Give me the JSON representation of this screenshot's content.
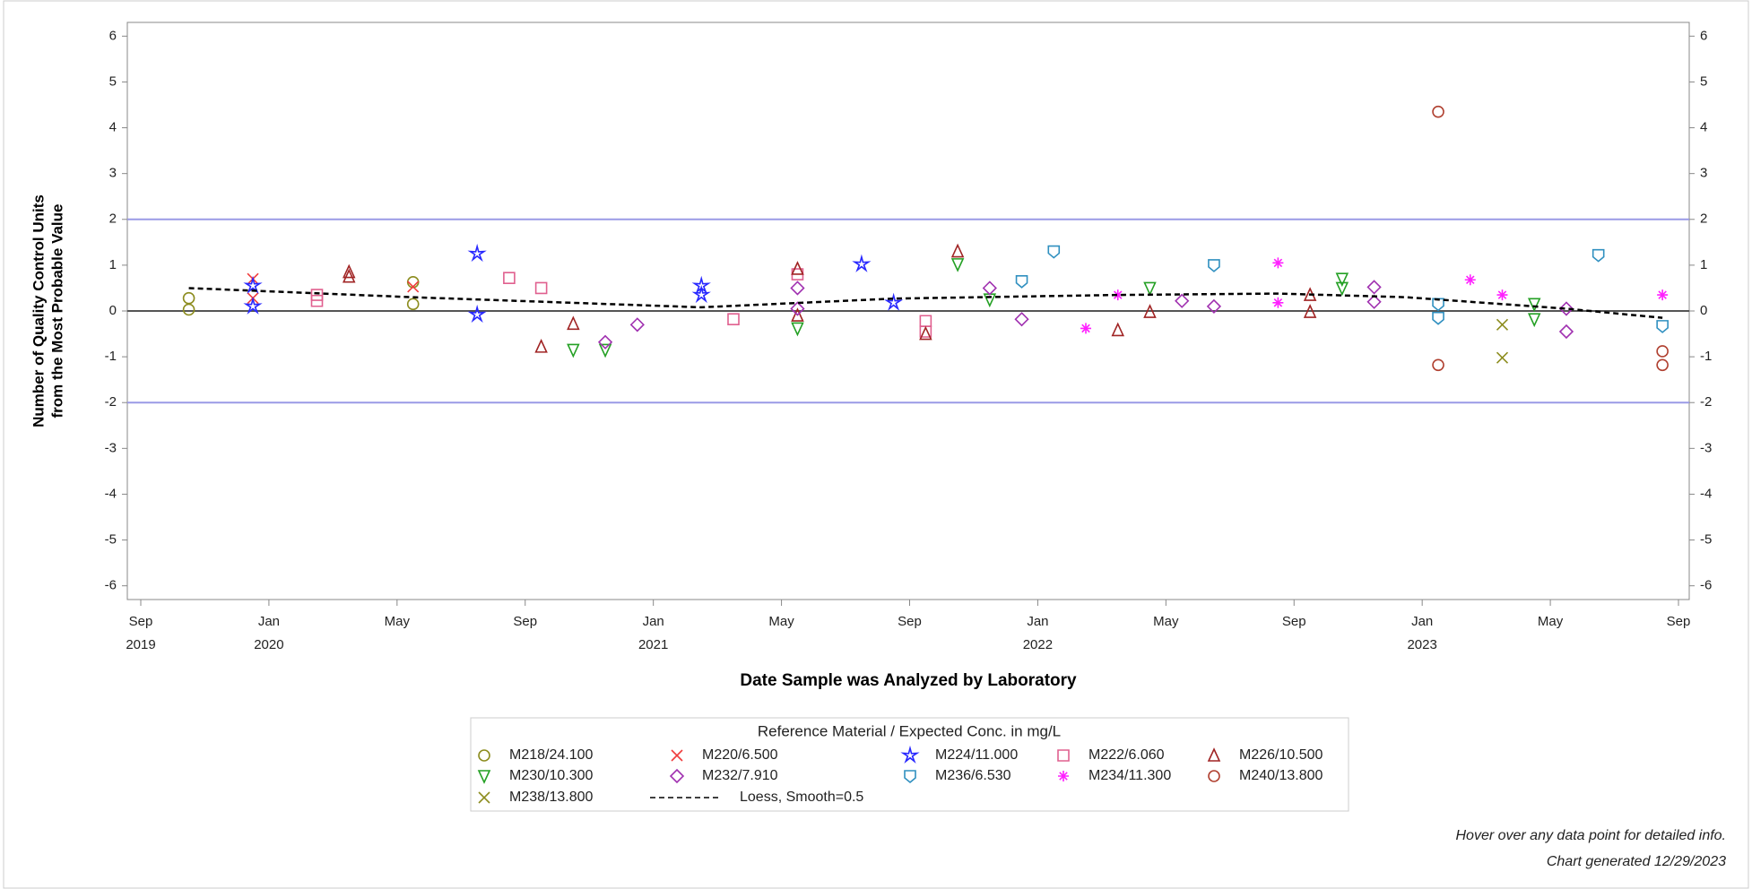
{
  "chart_data": {
    "type": "scatter",
    "x_label": "Date Sample was Analyzed by Laboratory",
    "y_label": [
      "Number of Quality Control Units",
      "from the Most Probable Value"
    ],
    "xlim": [
      "2019-09",
      "2023-09"
    ],
    "xticks": [
      {
        "value": "2019-09",
        "label": [
          "Sep",
          "2019"
        ]
      },
      {
        "value": "2020-01",
        "label": [
          "Jan",
          "2020"
        ]
      },
      {
        "value": "2020-05",
        "label": "May"
      },
      {
        "value": "2020-09",
        "label": "Sep"
      },
      {
        "value": "2021-01",
        "label": [
          "Jan",
          "2021"
        ]
      },
      {
        "value": "2021-05",
        "label": "May"
      },
      {
        "value": "2021-09",
        "label": "Sep"
      },
      {
        "value": "2022-01",
        "label": [
          "Jan",
          "2022"
        ]
      },
      {
        "value": "2022-05",
        "label": "May"
      },
      {
        "value": "2022-09",
        "label": "Sep"
      },
      {
        "value": "2023-01",
        "label": [
          "Jan",
          "2023"
        ]
      },
      {
        "value": "2023-05",
        "label": "May"
      },
      {
        "value": "2023-09",
        "label": "Sep"
      }
    ],
    "ylim": [
      -6.3,
      6.3
    ],
    "yticks": [
      6,
      5,
      4,
      3,
      2,
      1,
      0,
      -1,
      -2,
      -3,
      -4,
      -5,
      -6
    ],
    "y2lim": [
      -6.3,
      6.3
    ],
    "y2ticks": [
      6,
      5,
      4,
      3,
      2,
      1,
      0,
      -1,
      -2,
      -3,
      -4,
      -5,
      -6
    ],
    "ref_lines": [
      {
        "value": 2,
        "color": "#9a9ae6"
      },
      {
        "value": 0,
        "color": "#555555"
      },
      {
        "value": -2,
        "color": "#9a9ae6"
      }
    ],
    "legend_title": "Reference Material / Expected Conc. in mg/L",
    "legend_position": "bottom",
    "series": [
      {
        "name": "M218/24.100",
        "color": "#8c8c1e",
        "marker": "circle",
        "x": [
          "2019-10",
          "2019-10",
          "2020-05",
          "2020-05"
        ],
        "values": [
          0.28,
          0.03,
          0.63,
          0.15
        ]
      },
      {
        "name": "M220/6.500",
        "color": "#f03c3c",
        "marker": "x",
        "x": [
          "2019-12",
          "2019-12",
          "2020-05"
        ],
        "values": [
          0.7,
          0.28,
          0.53
        ]
      },
      {
        "name": "M224/11.000",
        "color": "#2828ff",
        "marker": "star",
        "x": [
          "2019-12",
          "2019-12",
          "2020-07",
          "2020-07",
          "2021-02",
          "2021-02",
          "2021-07",
          "2021-08"
        ],
        "values": [
          0.1,
          0.55,
          -0.08,
          1.25,
          0.55,
          0.35,
          1.02,
          0.18
        ]
      },
      {
        "name": "M222/6.060",
        "color": "#e0608f",
        "marker": "square",
        "x": [
          "2020-02",
          "2020-02",
          "2020-08",
          "2020-09",
          "2021-03",
          "2021-05",
          "2021-09",
          "2021-09"
        ],
        "values": [
          0.35,
          0.22,
          0.72,
          0.5,
          -0.18,
          0.8,
          -0.22,
          -0.45
        ]
      },
      {
        "name": "M226/10.500",
        "color": "#a02424",
        "marker": "triangle",
        "x": [
          "2020-03",
          "2020-03",
          "2020-09",
          "2020-10",
          "2021-05",
          "2021-05",
          "2021-09",
          "2021-10",
          "2022-03",
          "2022-04",
          "2022-09",
          "2022-09"
        ],
        "values": [
          0.85,
          0.75,
          -0.78,
          -0.28,
          0.92,
          -0.1,
          -0.5,
          1.3,
          -0.42,
          -0.02,
          0.35,
          -0.02
        ]
      },
      {
        "name": "M230/10.300",
        "color": "#24a024",
        "marker": "down-triangle",
        "x": [
          "2020-10",
          "2020-11",
          "2021-05",
          "2021-10",
          "2021-11",
          "2022-04",
          "2022-10",
          "2022-10",
          "2023-04",
          "2023-04"
        ],
        "values": [
          -0.85,
          -0.85,
          -0.38,
          1.02,
          0.25,
          0.5,
          0.7,
          0.5,
          0.15,
          -0.18
        ]
      },
      {
        "name": "M232/7.910",
        "color": "#a030b0",
        "marker": "diamond",
        "x": [
          "2020-11",
          "2020-12",
          "2021-05",
          "2021-05",
          "2021-11",
          "2021-12",
          "2022-05",
          "2022-06",
          "2022-11",
          "2022-11",
          "2023-05",
          "2023-05"
        ],
        "values": [
          -0.68,
          -0.3,
          0.5,
          0.05,
          0.5,
          -0.18,
          0.22,
          0.1,
          0.52,
          0.2,
          -0.45,
          0.05
        ]
      },
      {
        "name": "M236/6.530",
        "color": "#3090c0",
        "marker": "shield",
        "x": [
          "2021-12",
          "2022-01",
          "2022-06",
          "2023-01",
          "2023-01",
          "2023-06",
          "2023-08"
        ],
        "values": [
          0.65,
          1.3,
          1.0,
          0.15,
          -0.15,
          1.22,
          -0.33
        ]
      },
      {
        "name": "M234/11.300",
        "color": "#ff20ff",
        "marker": "asterisk",
        "x": [
          "2022-02",
          "2022-03",
          "2022-08",
          "2022-08",
          "2023-02",
          "2023-03",
          "2023-08"
        ],
        "values": [
          -0.38,
          0.35,
          1.05,
          0.18,
          0.68,
          0.35,
          0.35
        ]
      },
      {
        "name": "M240/13.800",
        "color": "#b04030",
        "marker": "circle",
        "x": [
          "2023-01",
          "2023-01",
          "2023-08",
          "2023-08"
        ],
        "values": [
          -1.18,
          4.35,
          -0.88,
          -1.18
        ]
      },
      {
        "name": "M238/13.800",
        "color": "#8c8c1e",
        "marker": "x",
        "x": [
          "2023-03",
          "2023-03"
        ],
        "values": [
          -0.3,
          -1.02
        ]
      },
      {
        "name": "Loess, Smooth=0.5",
        "color": "#000000",
        "marker": "dashed-line",
        "x": [
          "2019-10",
          "2020-05",
          "2021-02",
          "2021-08",
          "2022-03",
          "2022-08",
          "2022-12",
          "2023-05",
          "2023-08"
        ],
        "values": [
          0.5,
          0.3,
          0.08,
          0.27,
          0.35,
          0.38,
          0.3,
          0.05,
          -0.15
        ]
      }
    ],
    "notes": [
      "Hover over any data point for detailed info.",
      "Chart generated 12/29/2023"
    ]
  }
}
